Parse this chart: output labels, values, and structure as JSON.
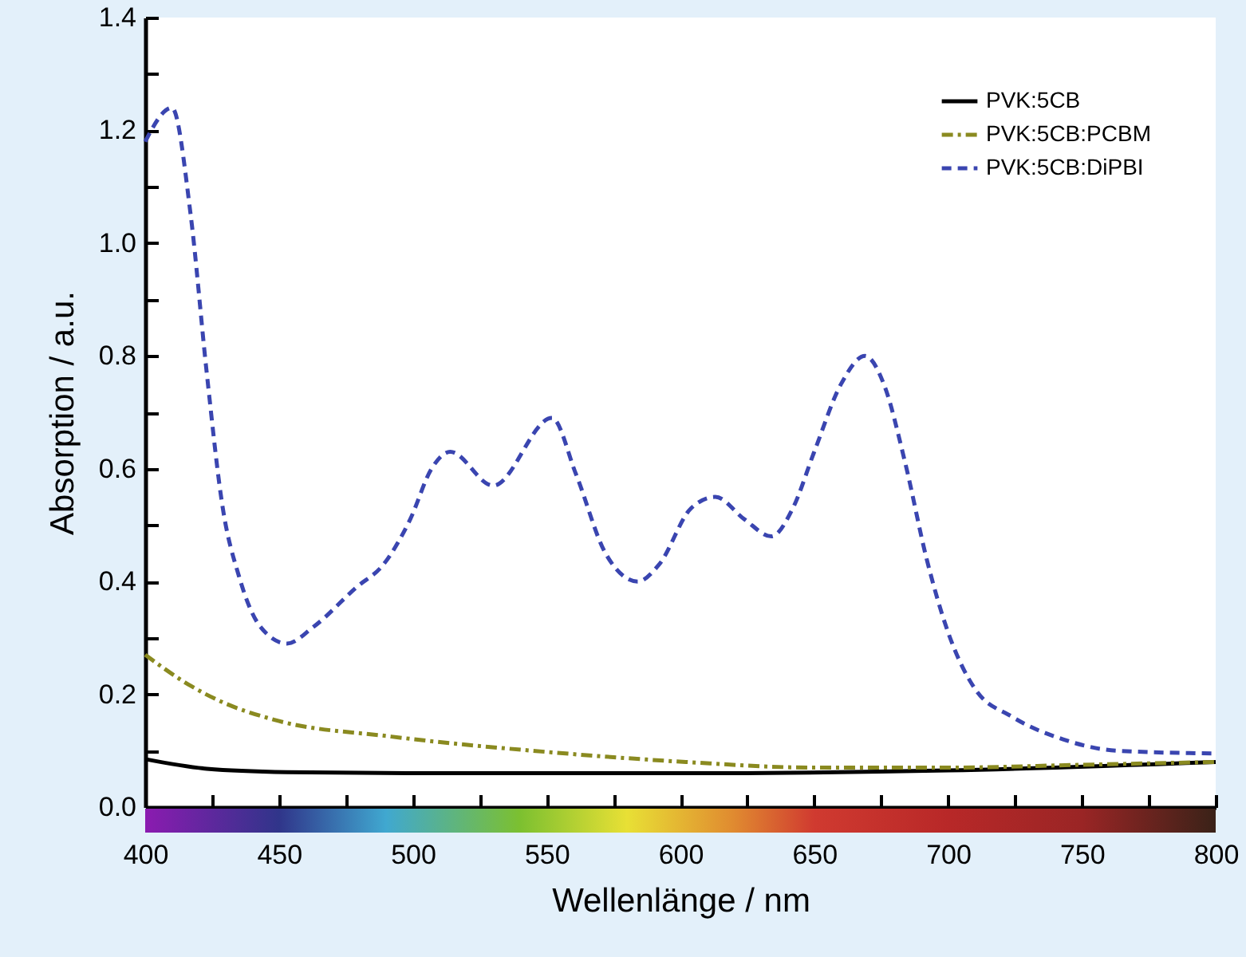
{
  "chart_data": {
    "type": "line",
    "xlabel": "Wellenlänge / nm",
    "ylabel": "Absorption / a.u.",
    "xlim": [
      400,
      800
    ],
    "ylim": [
      0,
      1.4
    ],
    "xticks": [
      400,
      {
        "value": 425,
        "label": null
      },
      450,
      {
        "value": 475,
        "label": null
      },
      500,
      {
        "value": 525,
        "label": null
      },
      550,
      {
        "value": 575,
        "label": null
      },
      600,
      {
        "value": 625,
        "label": null
      },
      650,
      {
        "value": 675,
        "label": null
      },
      700,
      {
        "value": 725,
        "label": null
      },
      750,
      {
        "value": 775,
        "label": null
      },
      800
    ],
    "yticks": [
      "0.0",
      {
        "value": 0.1,
        "label": null
      },
      {
        "value": 0.2,
        "label": "0.2"
      },
      {
        "value": 0.3,
        "label": null
      },
      {
        "value": 0.4,
        "label": "0.4"
      },
      {
        "value": 0.5,
        "label": null
      },
      {
        "value": 0.6,
        "label": "0.6"
      },
      {
        "value": 0.7,
        "label": null
      },
      {
        "value": 0.8,
        "label": "0.8"
      },
      {
        "value": 0.9,
        "label": null
      },
      {
        "value": 1.0,
        "label": "1.0"
      },
      {
        "value": 1.1,
        "label": null
      },
      {
        "value": 1.2,
        "label": "1.2"
      },
      {
        "value": 1.3,
        "label": null
      },
      {
        "value": 1.4,
        "label": "1.4"
      }
    ],
    "legend": "top right",
    "grid": false,
    "series": [
      {
        "name": "PVK:5CB",
        "color": "#000000",
        "line_style": "solid",
        "x": [
          400,
          423,
          453,
          500,
          600,
          700,
          800
        ],
        "values": [
          0.085,
          0.068,
          0.062,
          0.06,
          0.06,
          0.065,
          0.08
        ]
      },
      {
        "name": "PVK:5CB:PCBM",
        "color": "#8a8a20",
        "line_style": "dashdot",
        "x": [
          400,
          417,
          427,
          448,
          492,
          552,
          602,
          650,
          700,
          750,
          800
        ],
        "values": [
          0.27,
          0.215,
          0.19,
          0.155,
          0.125,
          0.097,
          0.08,
          0.07,
          0.07,
          0.075,
          0.08
        ]
      },
      {
        "name": "PVK:5CB:DiPBI",
        "color": "#3a45b0",
        "line_style": "dashed",
        "x": [
          400,
          410,
          417,
          423,
          429,
          435,
          443,
          453,
          463,
          479,
          489,
          499,
          507,
          514,
          530,
          552,
          561,
          572,
          584,
          592,
          604,
          613,
          624,
          634,
          642,
          650,
          660,
          669,
          676,
          684,
          692,
          700,
          710,
          724,
          743,
          763,
          800
        ],
        "values": [
          1.18,
          1.24,
          1.05,
          0.77,
          0.53,
          0.41,
          0.32,
          0.29,
          0.32,
          0.39,
          0.43,
          0.51,
          0.6,
          0.63,
          0.57,
          0.69,
          0.59,
          0.45,
          0.4,
          0.43,
          0.53,
          0.55,
          0.51,
          0.48,
          0.53,
          0.63,
          0.75,
          0.8,
          0.75,
          0.61,
          0.44,
          0.31,
          0.21,
          0.16,
          0.12,
          0.1,
          0.095
        ]
      }
    ]
  }
}
